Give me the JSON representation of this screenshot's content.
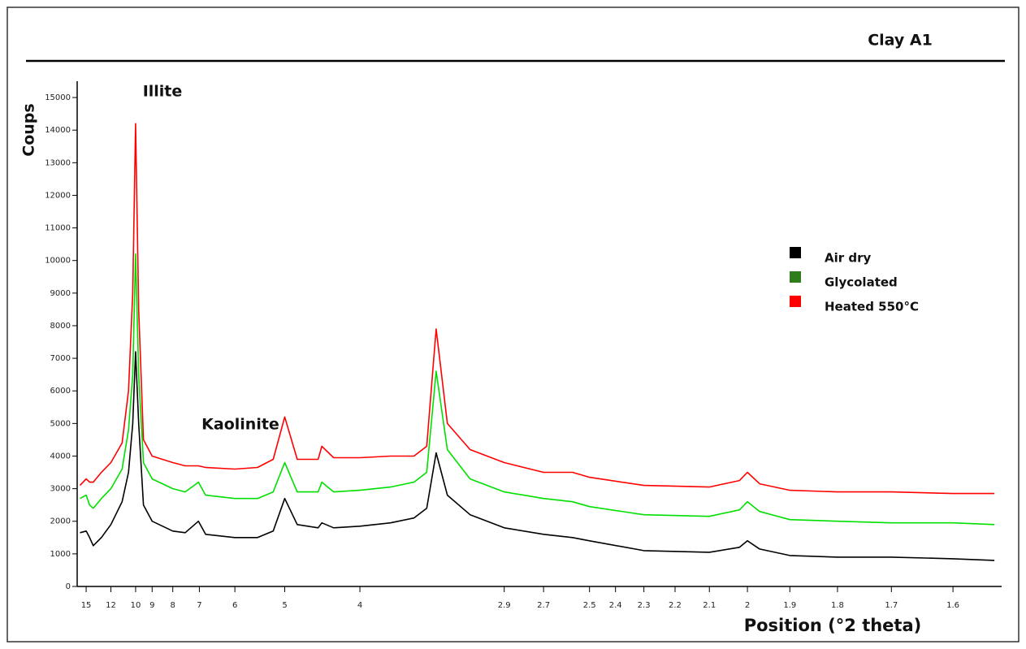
{
  "chart_data": {
    "type": "line",
    "title": "Clay A1",
    "xlabel": "Position (°2 theta)",
    "ylabel": "Coups",
    "annotations": [
      "Illite",
      "Kaolinite"
    ],
    "x": [
      16,
      15,
      14.5,
      14,
      13,
      12,
      11,
      10.5,
      10.2,
      10,
      9.8,
      9.5,
      9,
      8,
      7.5,
      7.03,
      6.8,
      6,
      5.5,
      5.2,
      5,
      4.8,
      4.5,
      4.45,
      4.3,
      4,
      3.7,
      3.5,
      3.4,
      3.33,
      3.25,
      3.1,
      2.9,
      2.7,
      2.57,
      2.5,
      2.3,
      2.1,
      2.02,
      2,
      1.97,
      1.9,
      1.8,
      1.7,
      1.6,
      1.54
    ],
    "series": [
      {
        "name": "Air dry",
        "color": "#000000",
        "values": [
          1650,
          1700,
          1500,
          1250,
          1500,
          1900,
          2600,
          3500,
          5000,
          7200,
          5000,
          2500,
          2000,
          1700,
          1650,
          2000,
          1600,
          1500,
          1500,
          1700,
          2700,
          1900,
          1800,
          1950,
          1800,
          1850,
          1950,
          2100,
          2400,
          4100,
          2800,
          2200,
          1800,
          1600,
          1500,
          1400,
          1100,
          1050,
          1200,
          1400,
          1150,
          950,
          900,
          900,
          850,
          800
        ]
      },
      {
        "name": "Glycolated",
        "color": "#00e000",
        "values": [
          2700,
          2800,
          2500,
          2400,
          2700,
          3000,
          3600,
          4800,
          6500,
          10200,
          6500,
          3800,
          3300,
          3000,
          2900,
          3200,
          2800,
          2700,
          2700,
          2900,
          3800,
          2900,
          2900,
          3200,
          2900,
          2950,
          3050,
          3200,
          3500,
          6600,
          4200,
          3300,
          2900,
          2700,
          2600,
          2450,
          2200,
          2150,
          2350,
          2600,
          2300,
          2050,
          2000,
          1950,
          1950,
          1900
        ]
      },
      {
        "name": "Heated 550°C",
        "color": "#ff0000",
        "values": [
          3100,
          3300,
          3200,
          3200,
          3500,
          3800,
          4400,
          6000,
          9000,
          14200,
          8500,
          4500,
          4000,
          3800,
          3700,
          3700,
          3650,
          3600,
          3650,
          3900,
          5200,
          3900,
          3900,
          4300,
          3950,
          3950,
          4000,
          4000,
          4300,
          7900,
          5000,
          4200,
          3800,
          3500,
          3500,
          3350,
          3100,
          3050,
          3250,
          3500,
          3150,
          2950,
          2900,
          2900,
          2850,
          2850
        ]
      }
    ],
    "legend_colors": [
      "#000000",
      "#2e7d1a",
      "#ff0000"
    ],
    "xlim": [
      16.5,
      1.53
    ],
    "xticks": [
      15,
      12,
      10,
      9,
      8,
      7,
      6,
      5,
      4,
      2.9,
      2.7,
      2.5,
      2.4,
      2.3,
      2.2,
      2.1,
      2,
      1.9,
      1.8,
      1.7,
      1.6
    ],
    "ylim": [
      0,
      15500
    ],
    "yticks": [
      0,
      1000,
      2000,
      3000,
      4000,
      5000,
      6000,
      7000,
      8000,
      9000,
      10000,
      11000,
      12000,
      13000,
      14000,
      15000
    ]
  }
}
